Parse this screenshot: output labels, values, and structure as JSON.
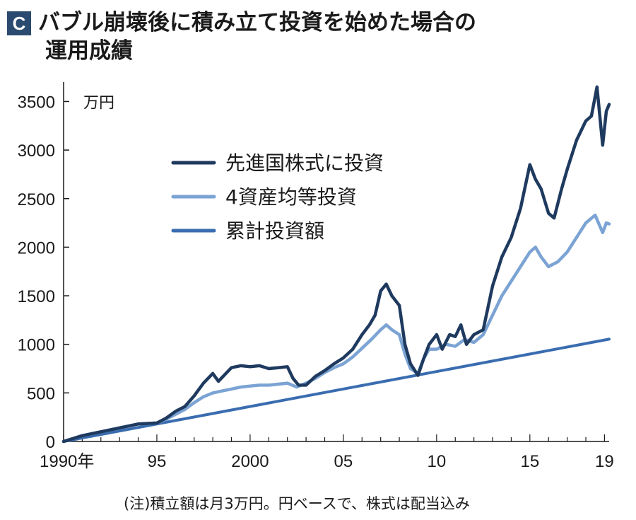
{
  "title": {
    "badge": "C",
    "line1": "バブル崩壊後に積み立て投資を始めた場合の",
    "line2": "運用成績"
  },
  "note": "(注)積立額は月3万円。円ベースで、株式は配当込み",
  "colors": {
    "badge_bg": "#2b4a6f",
    "developed_equity": "#1f3a5f",
    "four_asset": "#7ba3d4",
    "cumulative": "#3a6db0",
    "axis": "#1a1a1a"
  },
  "chart_data": {
    "type": "line",
    "title": "バブル崩壊後に積み立て投資を始めた場合の運用成績",
    "xlabel": "",
    "ylabel": "",
    "unit_label": "万円",
    "xlim": [
      1990,
      2019.25
    ],
    "ylim": [
      0,
      3700
    ],
    "x_ticks": [
      1990,
      1995,
      2000,
      2005,
      2010,
      2015,
      2019
    ],
    "x_tick_labels": [
      "1990年",
      "95",
      "2000",
      "05",
      "10",
      "15",
      "19"
    ],
    "y_ticks": [
      0,
      500,
      1000,
      1500,
      2000,
      2500,
      3000,
      3500
    ],
    "y_tick_labels": [
      "0",
      "500",
      "1000",
      "1500",
      "2000",
      "2500",
      "3000",
      "3500"
    ],
    "grid": false,
    "legend_position": "top-left",
    "series": [
      {
        "name": "先進国株式に投資",
        "color": "#1f3a5f",
        "points": [
          [
            1990,
            0
          ],
          [
            1991,
            60
          ],
          [
            1992,
            100
          ],
          [
            1993,
            140
          ],
          [
            1994,
            180
          ],
          [
            1995,
            190
          ],
          [
            1995.5,
            240
          ],
          [
            1996,
            310
          ],
          [
            1996.5,
            360
          ],
          [
            1997,
            470
          ],
          [
            1997.5,
            600
          ],
          [
            1998,
            700
          ],
          [
            1998.3,
            620
          ],
          [
            1998.7,
            700
          ],
          [
            1999,
            760
          ],
          [
            1999.5,
            780
          ],
          [
            2000,
            770
          ],
          [
            2000.5,
            780
          ],
          [
            2001,
            750
          ],
          [
            2001.5,
            760
          ],
          [
            2002,
            770
          ],
          [
            2002.3,
            650
          ],
          [
            2002.6,
            580
          ],
          [
            2003,
            580
          ],
          [
            2003.5,
            670
          ],
          [
            2004,
            730
          ],
          [
            2004.5,
            800
          ],
          [
            2005,
            860
          ],
          [
            2005.5,
            950
          ],
          [
            2006,
            1100
          ],
          [
            2006.4,
            1200
          ],
          [
            2006.7,
            1300
          ],
          [
            2007,
            1550
          ],
          [
            2007.3,
            1620
          ],
          [
            2007.6,
            1500
          ],
          [
            2008,
            1400
          ],
          [
            2008.3,
            1000
          ],
          [
            2008.6,
            800
          ],
          [
            2009,
            680
          ],
          [
            2009.3,
            850
          ],
          [
            2009.6,
            1000
          ],
          [
            2010,
            1100
          ],
          [
            2010.3,
            950
          ],
          [
            2010.7,
            1100
          ],
          [
            2011,
            1080
          ],
          [
            2011.3,
            1200
          ],
          [
            2011.6,
            1000
          ],
          [
            2012,
            1100
          ],
          [
            2012.5,
            1150
          ],
          [
            2013,
            1600
          ],
          [
            2013.5,
            1900
          ],
          [
            2014,
            2100
          ],
          [
            2014.5,
            2400
          ],
          [
            2015,
            2850
          ],
          [
            2015.3,
            2700
          ],
          [
            2015.6,
            2600
          ],
          [
            2016,
            2350
          ],
          [
            2016.3,
            2300
          ],
          [
            2016.7,
            2600
          ],
          [
            2017,
            2800
          ],
          [
            2017.5,
            3100
          ],
          [
            2018,
            3300
          ],
          [
            2018.3,
            3350
          ],
          [
            2018.6,
            3650
          ],
          [
            2018.9,
            3050
          ],
          [
            2019.1,
            3400
          ],
          [
            2019.25,
            3470
          ]
        ]
      },
      {
        "name": "4資産均等投資",
        "color": "#7ba3d4",
        "points": [
          [
            1990,
            0
          ],
          [
            1991,
            60
          ],
          [
            1992,
            100
          ],
          [
            1993,
            140
          ],
          [
            1994,
            180
          ],
          [
            1995,
            190
          ],
          [
            1995.5,
            230
          ],
          [
            1996,
            280
          ],
          [
            1996.5,
            330
          ],
          [
            1997,
            400
          ],
          [
            1997.5,
            460
          ],
          [
            1998,
            500
          ],
          [
            1998.5,
            520
          ],
          [
            1999,
            540
          ],
          [
            1999.5,
            560
          ],
          [
            2000,
            570
          ],
          [
            2000.5,
            580
          ],
          [
            2001,
            580
          ],
          [
            2001.5,
            590
          ],
          [
            2002,
            600
          ],
          [
            2002.5,
            560
          ],
          [
            2003,
            600
          ],
          [
            2003.5,
            650
          ],
          [
            2004,
            710
          ],
          [
            2004.5,
            760
          ],
          [
            2005,
            800
          ],
          [
            2005.5,
            870
          ],
          [
            2006,
            960
          ],
          [
            2006.5,
            1050
          ],
          [
            2007,
            1150
          ],
          [
            2007.3,
            1200
          ],
          [
            2007.6,
            1150
          ],
          [
            2008,
            1100
          ],
          [
            2008.3,
            900
          ],
          [
            2008.6,
            750
          ],
          [
            2009,
            700
          ],
          [
            2009.3,
            850
          ],
          [
            2009.6,
            950
          ],
          [
            2010,
            950
          ],
          [
            2010.5,
            1000
          ],
          [
            2011,
            980
          ],
          [
            2011.5,
            1050
          ],
          [
            2012,
            1020
          ],
          [
            2012.5,
            1100
          ],
          [
            2013,
            1300
          ],
          [
            2013.5,
            1500
          ],
          [
            2014,
            1650
          ],
          [
            2014.5,
            1800
          ],
          [
            2015,
            1950
          ],
          [
            2015.3,
            2000
          ],
          [
            2015.6,
            1900
          ],
          [
            2016,
            1800
          ],
          [
            2016.5,
            1850
          ],
          [
            2017,
            1950
          ],
          [
            2017.5,
            2100
          ],
          [
            2018,
            2250
          ],
          [
            2018.5,
            2330
          ],
          [
            2018.9,
            2150
          ],
          [
            2019.1,
            2250
          ],
          [
            2019.25,
            2240
          ]
        ]
      },
      {
        "name": "累計投資額",
        "color": "#3a6db0",
        "points": [
          [
            1990,
            0
          ],
          [
            2019.25,
            1053
          ]
        ]
      }
    ]
  }
}
